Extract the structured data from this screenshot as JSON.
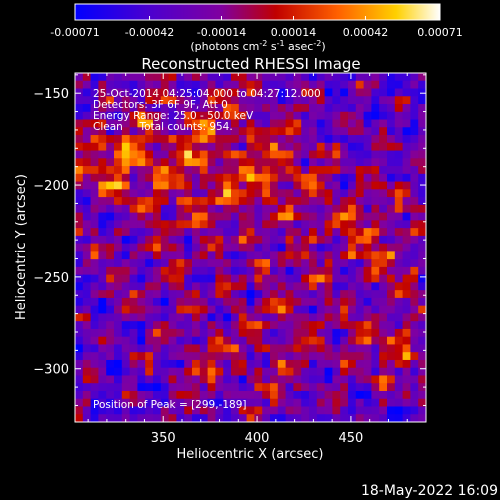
{
  "chart_data": {
    "type": "heatmap",
    "title": "Reconstructed RHESSI Image",
    "xlabel": "Heliocentric X (arcsec)",
    "ylabel": "Heliocentric Y (arcsec)",
    "xlim": [
      303,
      490
    ],
    "ylim": [
      -329,
      -139
    ],
    "x_ticks": [
      "350",
      "400",
      "450"
    ],
    "x_tick_values": [
      350,
      400,
      450
    ],
    "y_ticks": [
      "-150",
      "-200",
      "-250",
      "-300"
    ],
    "y_tick_values": [
      -150,
      -200,
      -250,
      -300
    ],
    "colorbar": {
      "range": [
        -0.00071,
        0.00071
      ],
      "ticks": [
        "-0.00071",
        "-0.00042",
        "-0.00014",
        "0.00014",
        "0.00042",
        "0.00071"
      ],
      "tick_values": [
        -0.00071,
        -0.00042,
        -0.00014,
        0.00014,
        0.00042,
        0.00071
      ],
      "unit_prefix": "(photons cm",
      "unit_exp1": "-2",
      "unit_mid": " s",
      "unit_exp2": "-1",
      "unit_mid2": " asec",
      "unit_exp3": "-2",
      "unit_suffix": ")",
      "colors": [
        "#0000ff",
        "#4a00d0",
        "#8000a0",
        "#c00000",
        "#ff6000",
        "#ffd000",
        "#ffffff"
      ]
    },
    "annotations": [
      "25-Oct-2014 04:25:04.000 to 04:27:12.000",
      "Detectors: 3F 6F 9F, Att 0",
      "Energy Range: 25.0 - 50.0 keV",
      "Clean     Total counts: 954."
    ],
    "peak_label": "Position of Peak = [299,-189]"
  },
  "footer": {
    "timestamp": "18-May-2022 16:09"
  }
}
